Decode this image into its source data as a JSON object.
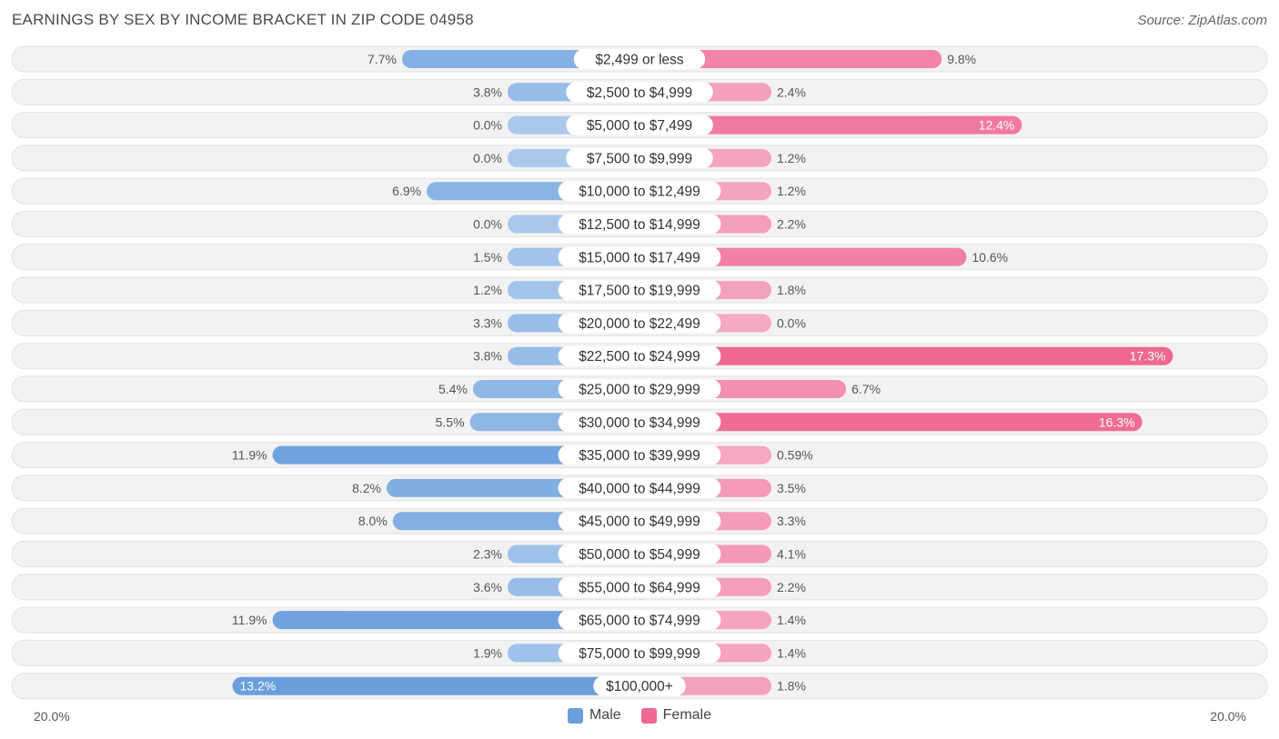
{
  "header": {
    "title": "EARNINGS BY SEX BY INCOME BRACKET IN ZIP CODE 04958",
    "source": "Source: ZipAtlas.com"
  },
  "axis": {
    "left_label": "20.0%",
    "right_label": "20.0%"
  },
  "legend": {
    "male": "Male",
    "female": "Female"
  },
  "colors": {
    "male_light": "#a9c8ec",
    "male_dark": "#6a9fdc",
    "female_light": "#f5a8c2",
    "female_dark": "#ef6892",
    "row_bg": "#f2f2f2",
    "row_border": "#e2e2e2"
  },
  "chart_data": {
    "type": "bar",
    "orientation": "horizontal-diverging",
    "title": "EARNINGS BY SEX BY INCOME BRACKET IN ZIP CODE 04958",
    "xlim": [
      -20,
      20
    ],
    "categories": [
      "$2,499 or less",
      "$2,500 to $4,999",
      "$5,000 to $7,499",
      "$7,500 to $9,999",
      "$10,000 to $12,499",
      "$12,500 to $14,999",
      "$15,000 to $17,499",
      "$17,500 to $19,999",
      "$20,000 to $22,499",
      "$22,500 to $24,999",
      "$25,000 to $29,999",
      "$30,000 to $34,999",
      "$35,000 to $39,999",
      "$40,000 to $44,999",
      "$45,000 to $49,999",
      "$50,000 to $54,999",
      "$55,000 to $64,999",
      "$65,000 to $74,999",
      "$75,000 to $99,999",
      "$100,000+"
    ],
    "series": [
      {
        "name": "Male",
        "values": [
          7.7,
          3.8,
          0.0,
          0.0,
          6.9,
          0.0,
          1.5,
          1.2,
          3.3,
          3.8,
          5.4,
          5.5,
          11.9,
          8.2,
          8.0,
          2.3,
          3.6,
          11.9,
          1.9,
          13.2
        ],
        "labels": [
          "7.7%",
          "3.8%",
          "0.0%",
          "0.0%",
          "6.9%",
          "0.0%",
          "1.5%",
          "1.2%",
          "3.3%",
          "3.8%",
          "5.4%",
          "5.5%",
          "11.9%",
          "8.2%",
          "8.0%",
          "2.3%",
          "3.6%",
          "11.9%",
          "1.9%",
          "13.2%"
        ]
      },
      {
        "name": "Female",
        "values": [
          9.8,
          2.4,
          12.4,
          1.2,
          1.2,
          2.2,
          10.6,
          1.8,
          0.0,
          17.3,
          6.7,
          16.3,
          0.59,
          3.5,
          3.3,
          4.1,
          2.2,
          1.4,
          1.4,
          1.8
        ],
        "labels": [
          "9.8%",
          "2.4%",
          "12.4%",
          "1.2%",
          "1.2%",
          "2.2%",
          "10.6%",
          "1.8%",
          "0.0%",
          "17.3%",
          "6.7%",
          "16.3%",
          "0.59%",
          "3.5%",
          "3.3%",
          "4.1%",
          "2.2%",
          "1.4%",
          "1.4%",
          "1.8%"
        ]
      }
    ]
  }
}
